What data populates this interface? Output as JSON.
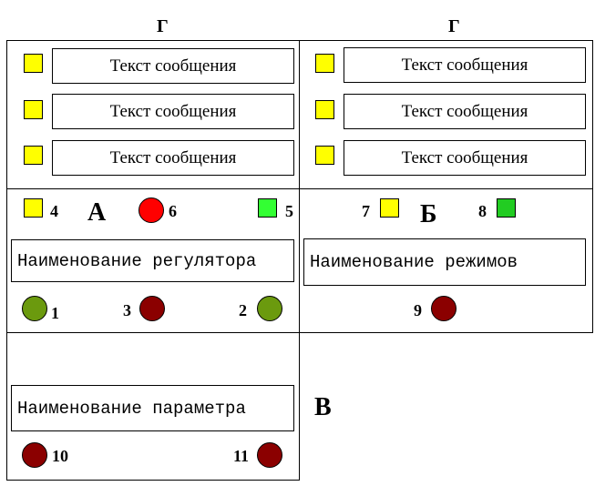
{
  "colors": {
    "yellow": "#ffff00",
    "red": "#ff0000",
    "bright_green": "#33ff33",
    "green": "#22cc22",
    "olive": "#6b9a0e",
    "dark_red": "#8b0000",
    "border": "#000000"
  },
  "headers": {
    "left": "Г",
    "right": "Г"
  },
  "messages": {
    "left": [
      "Текст сообщения",
      "Текст сообщения",
      "Текст сообщения"
    ],
    "right": [
      "Текст сообщения",
      "Текст сообщения",
      "Текст сообщения"
    ]
  },
  "section_a": {
    "letter": "А",
    "name": "Наименование регулятора",
    "indicators": {
      "n4": "4",
      "n6": "6",
      "n5": "5",
      "n1": "1",
      "n3": "3",
      "n2": "2"
    }
  },
  "section_b": {
    "letter": "Б",
    "name": "Наименование режимов",
    "indicators": {
      "n7": "7",
      "n8": "8",
      "n9": "9"
    }
  },
  "section_v": {
    "letter": "В",
    "name": "Наименование параметра",
    "indicators": {
      "n10": "10",
      "n11": "11"
    }
  }
}
